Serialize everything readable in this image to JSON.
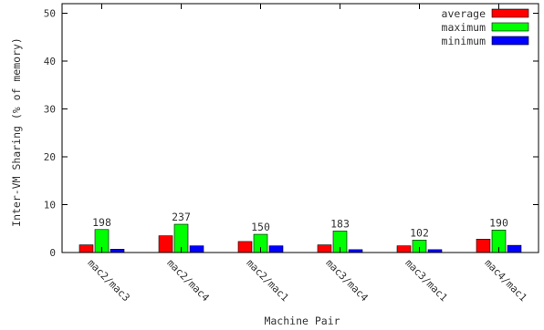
{
  "chart_data": {
    "type": "bar",
    "xlabel": "Machine Pair",
    "ylabel": "Inter-VM Sharing (% of memory)",
    "ylim": [
      0,
      52
    ],
    "yticks": [
      0,
      10,
      20,
      30,
      40,
      50
    ],
    "grid": false,
    "legend_position": "top-right",
    "categories": [
      "mac2/mac3",
      "mac2/mac4",
      "mac2/mac1",
      "mac3/mac4",
      "mac3/mac1",
      "mac4/mac1"
    ],
    "series": [
      {
        "name": "average",
        "color": "#ff0000",
        "values": [
          1.6,
          3.5,
          2.3,
          1.6,
          1.4,
          2.8
        ]
      },
      {
        "name": "maximum",
        "color": "#00ff00",
        "values": [
          4.8,
          5.9,
          3.8,
          4.5,
          2.6,
          4.7
        ]
      },
      {
        "name": "minimum",
        "color": "#0000ff",
        "values": [
          0.7,
          1.4,
          1.4,
          0.6,
          0.6,
          1.5
        ]
      }
    ],
    "annotations": [
      "198",
      "237",
      "150",
      "183",
      "102",
      "190"
    ]
  }
}
